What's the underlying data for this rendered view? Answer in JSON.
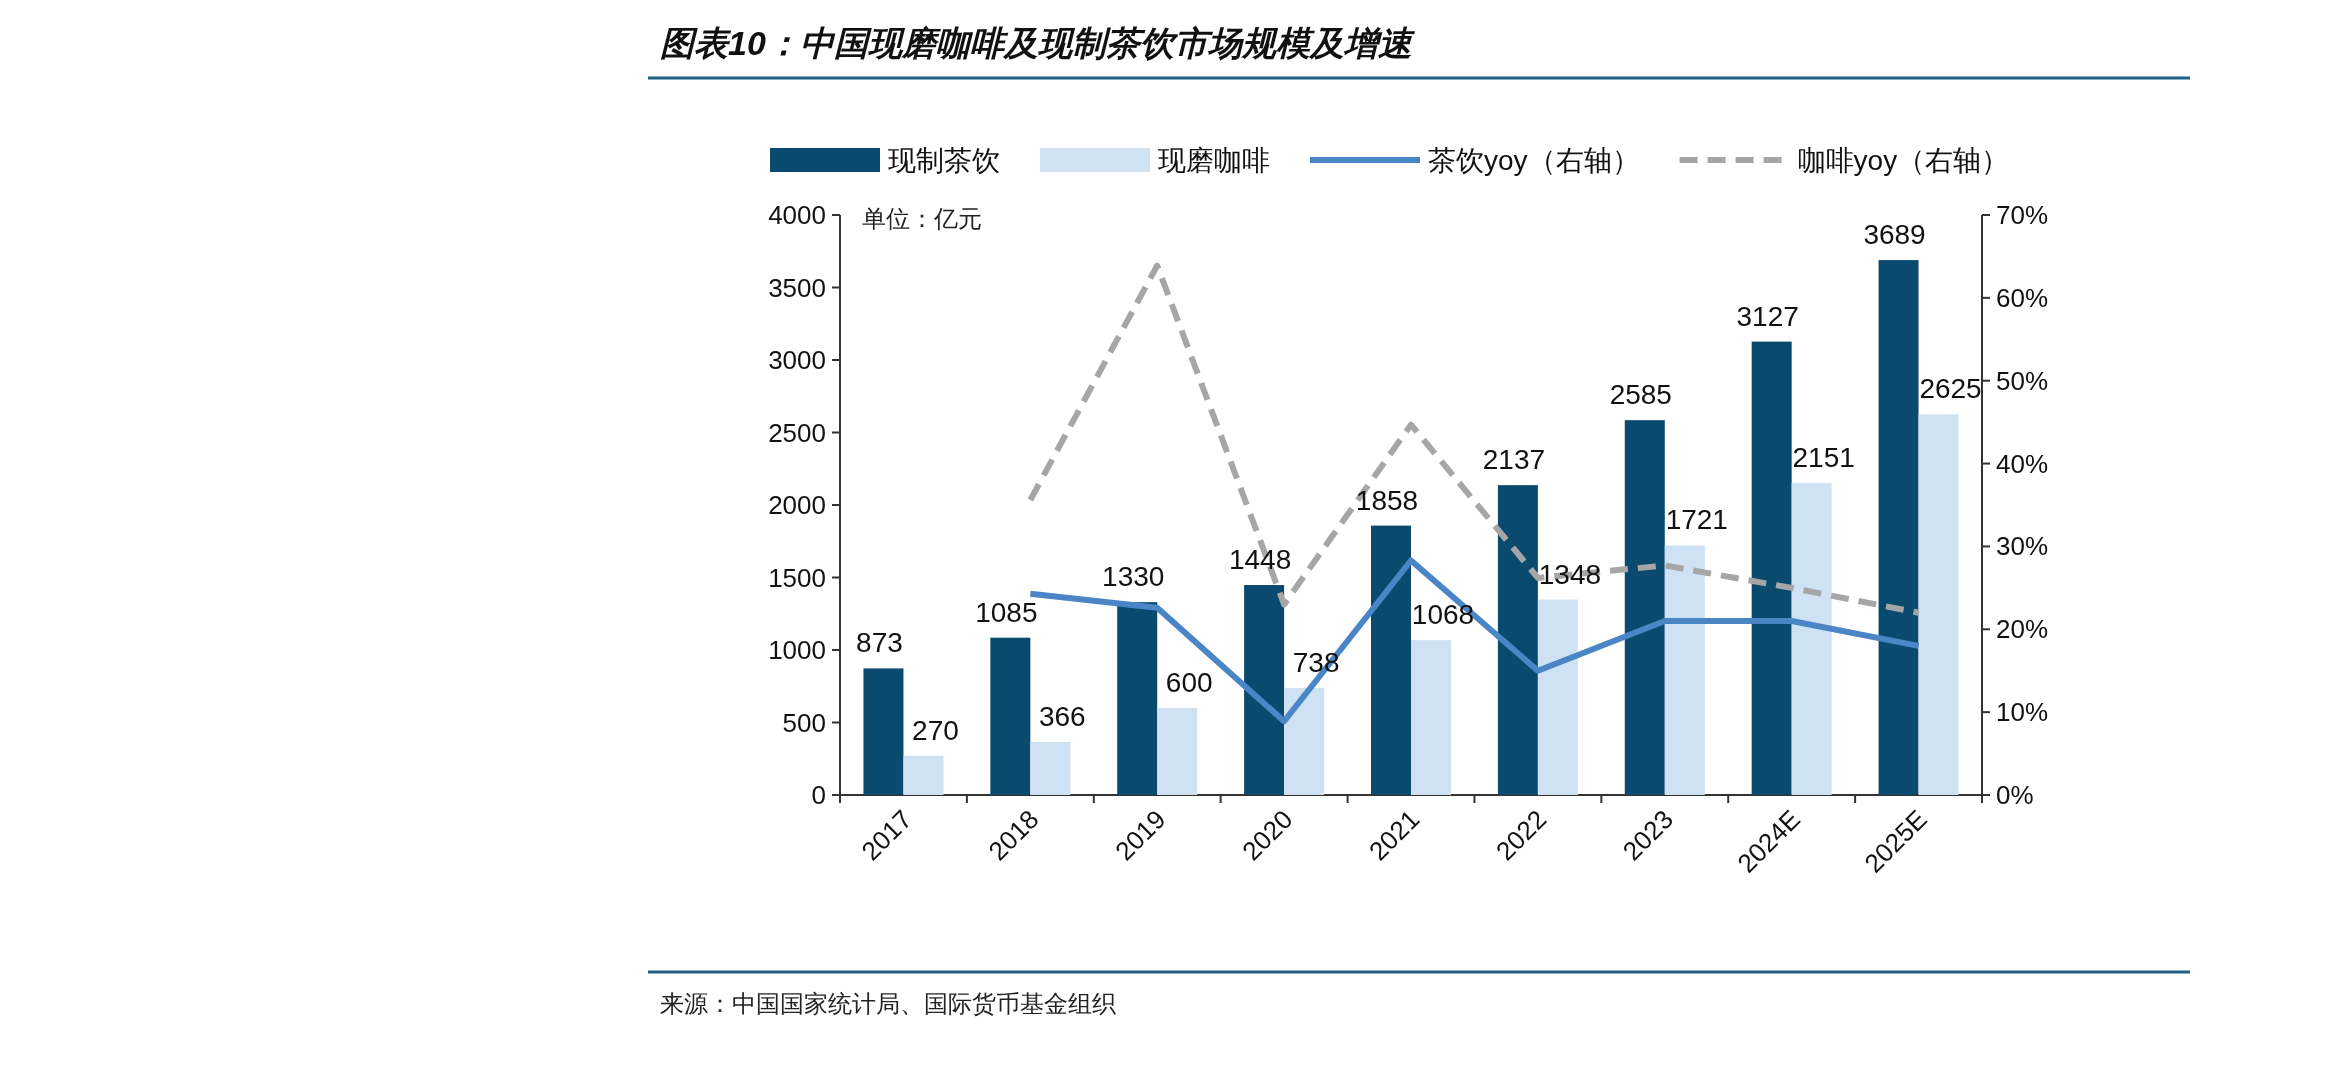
{
  "chart_data": {
    "type": "bar",
    "title": "图表10：中国现磨咖啡及现制茶饮市场规模及增速",
    "annotations": [
      "单位：亿元",
      "来源：中国国家统计局、国际货币基金组织"
    ],
    "categories": [
      "2017",
      "2018",
      "2019",
      "2020",
      "2021",
      "2022",
      "2023",
      "2024E",
      "2025E"
    ],
    "series": [
      {
        "name": "现制茶饮",
        "color": "#0b4a6f",
        "values": [
          873,
          1085,
          1330,
          1448,
          1858,
          2137,
          2585,
          3127,
          3689
        ],
        "value_labels": [
          "873",
          "1085",
          "1330",
          "1448",
          "1858",
          "2137",
          "2585",
          "3127",
          "3689"
        ]
      },
      {
        "name": "现磨咖啡",
        "color": "#cfe2f3",
        "values": [
          270,
          366,
          600,
          738,
          1068,
          1348,
          1721,
          2151,
          2625
        ],
        "value_labels": [
          "270",
          "366",
          "600",
          "738",
          "1068",
          "1348",
          "1721",
          "2151",
          "2625"
        ]
      },
      {
        "name": "茶饮yoy（右轴）",
        "type": "line",
        "axis": "y2",
        "color": "#4a86c5",
        "line_style": "solid",
        "values": [
          null,
          24.3,
          22.6,
          8.9,
          28.3,
          15.0,
          21.0,
          21.0,
          18.0
        ]
      },
      {
        "name": "咖啡yoy（右轴）",
        "type": "line",
        "axis": "y2",
        "color": "#a6a6a6",
        "line_style": "dashed",
        "values": [
          null,
          35.6,
          63.9,
          23.0,
          44.7,
          26.2,
          27.7,
          25.0,
          22.0
        ]
      }
    ],
    "ylim": [
      0,
      4000
    ],
    "yticks": [
      0,
      500,
      1000,
      1500,
      2000,
      2500,
      3000,
      3500,
      4000
    ],
    "y2lim": [
      0,
      70
    ],
    "y2ticks": [
      {
        "value": 0,
        "label": "0%"
      },
      {
        "value": 10,
        "label": "10%"
      },
      {
        "value": 20,
        "label": "20%"
      },
      {
        "value": 30,
        "label": "30%"
      },
      {
        "value": 40,
        "label": "40%"
      },
      {
        "value": 50,
        "label": "50%"
      },
      {
        "value": 60,
        "label": "60%"
      },
      {
        "value": 70,
        "label": "70%"
      }
    ],
    "legend": "top",
    "grid": false
  }
}
